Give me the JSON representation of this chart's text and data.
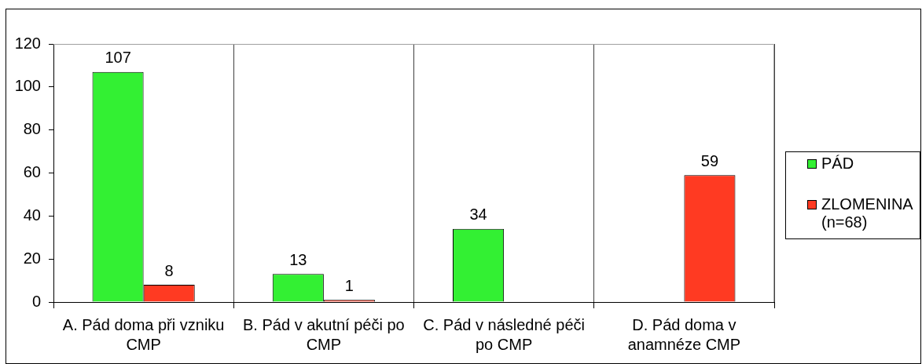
{
  "chart_data": {
    "type": "bar",
    "categories": [
      "A. Pád doma při vzniku CMP",
      "B. Pád v akutní péči po CMP",
      "C. Pád v následné péči po CMP",
      "D. Pád doma v anamnéze CMP"
    ],
    "series": [
      {
        "name": "PÁD",
        "color": "#33f033",
        "values": [
          107,
          13,
          34,
          null
        ]
      },
      {
        "name": "ZLOMENINA (n=68)",
        "color": "#ff3a22",
        "values": [
          8,
          1,
          null,
          59
        ]
      }
    ],
    "ylim": [
      0,
      120
    ],
    "yticks": [
      0,
      20,
      40,
      60,
      80,
      100,
      120
    ],
    "grid": "x",
    "legend": "right",
    "data_labels": true
  }
}
